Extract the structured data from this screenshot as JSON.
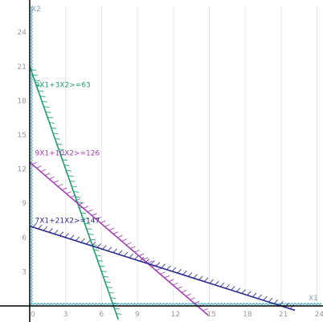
{
  "colors": {
    "background": "#ffffff",
    "axis": "#000000",
    "hatch": "#5fc0d8",
    "tick_label": "#9a9a9a",
    "grid": "#e6e6e6"
  },
  "chart_data": {
    "type": "line",
    "x_axis_label": "X1",
    "y_axis_label": "X2",
    "xlim": [
      0,
      24
    ],
    "ylim": [
      0,
      26
    ],
    "x_ticks": [
      0,
      3,
      6,
      9,
      12,
      15,
      18,
      21,
      24
    ],
    "y_ticks": [
      3,
      6,
      9,
      12,
      15,
      18,
      21,
      24
    ],
    "x_tick_labels": [
      "0",
      "3",
      "6",
      "9",
      "12",
      "15",
      "18",
      "21",
      "24"
    ],
    "y_tick_labels": [
      "3",
      "6",
      "9",
      "12",
      "15",
      "18",
      "21",
      "24"
    ],
    "grid": "vertical-light",
    "series": [
      {
        "name": "9X1+3X2>=63",
        "color": "#1d9e6e",
        "x": [
          0,
          7
        ],
        "y": [
          21,
          0
        ],
        "hatch_side": "right",
        "label_anchor": [
          0.3,
          19.2
        ]
      },
      {
        "name": "9X1+10X2>=126",
        "color": "#a43fb3",
        "x": [
          0,
          14
        ],
        "y": [
          12.6,
          0
        ],
        "hatch_side": "right",
        "label_anchor": [
          0.3,
          13.2
        ]
      },
      {
        "name": "7X1+21X2>=147",
        "color": "#2a2a8c",
        "x": [
          0,
          21
        ],
        "y": [
          7,
          0
        ],
        "hatch_side": "right",
        "label_anchor": [
          0.3,
          7.3
        ]
      }
    ]
  }
}
